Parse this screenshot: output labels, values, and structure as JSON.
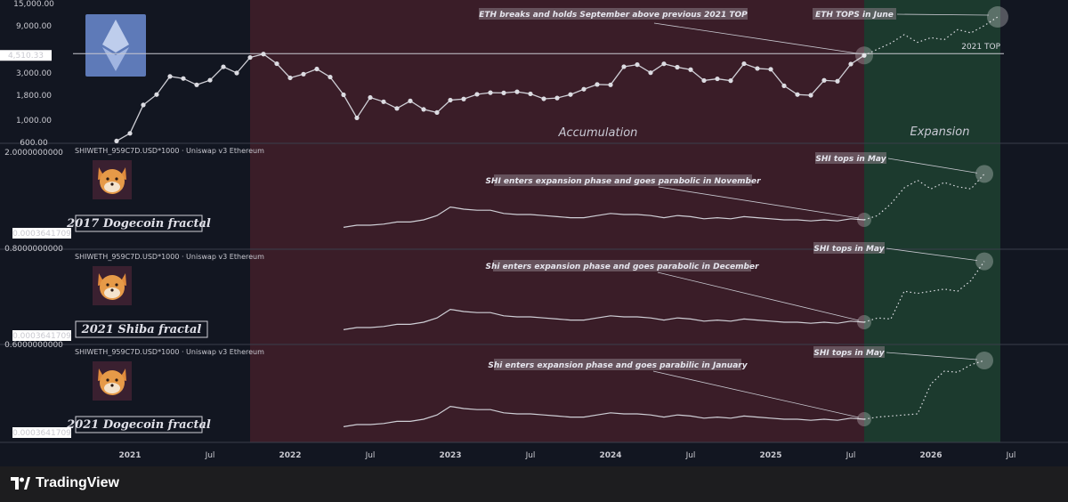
{
  "chart_data": [
    {
      "type": "line",
      "panel": "ETH",
      "scale": "log",
      "y_ticks": [
        "15,000.00",
        "9,000.00",
        "3,000.00",
        "1,800.00",
        "1,000.00",
        "600.00"
      ],
      "price_label": "4,510.33",
      "ylim": [
        600,
        15000
      ],
      "x_ticks": [
        "2021",
        "Jul",
        "2022",
        "Jul",
        "2023",
        "Jul",
        "2024",
        "Jul",
        "2025",
        "Jul",
        "2026",
        "Jul"
      ],
      "x_tick_dates": [
        "2021-01",
        "2021-07",
        "2022-01",
        "2022-07",
        "2023-01",
        "2023-07",
        "2024-01",
        "2024-07",
        "2025-01",
        "2025-07",
        "2026-01",
        "2026-07"
      ],
      "series_actual": {
        "x": [
          "2020-12",
          "2021-01",
          "2021-02",
          "2021-03",
          "2021-04",
          "2021-05",
          "2021-06",
          "2021-07",
          "2021-08",
          "2021-09",
          "2021-10",
          "2021-11",
          "2021-12",
          "2022-01",
          "2022-02",
          "2022-03",
          "2022-04",
          "2022-05",
          "2022-06",
          "2022-07",
          "2022-08",
          "2022-09",
          "2022-10",
          "2022-11",
          "2022-12",
          "2023-01",
          "2023-02",
          "2023-03",
          "2023-04",
          "2023-05",
          "2023-06",
          "2023-07",
          "2023-08",
          "2023-09",
          "2023-10",
          "2023-11",
          "2023-12",
          "2024-01",
          "2024-02",
          "2024-03",
          "2024-04",
          "2024-05",
          "2024-06",
          "2024-07",
          "2024-08",
          "2024-09",
          "2024-10",
          "2024-11",
          "2024-12",
          "2025-01",
          "2025-02",
          "2025-03",
          "2025-04",
          "2025-05",
          "2025-06",
          "2025-07",
          "2025-08"
        ],
        "values": [
          620,
          740,
          1430,
          1820,
          2770,
          2640,
          2280,
          2540,
          3460,
          3000,
          4300,
          4650,
          3720,
          2680,
          2920,
          3290,
          2730,
          1810,
          1060,
          1700,
          1540,
          1320,
          1570,
          1290,
          1200,
          1600,
          1640,
          1830,
          1900,
          1890,
          1940,
          1850,
          1650,
          1680,
          1820,
          2060,
          2300,
          2280,
          3470,
          3640,
          3020,
          3710,
          3430,
          3240,
          2520,
          2620,
          2510,
          3720,
          3330,
          3270,
          2230,
          1820,
          1790,
          2530,
          2480,
          3690,
          4510
        ]
      },
      "series_projection": {
        "x": [
          "2025-08",
          "2025-09",
          "2025-10",
          "2025-11",
          "2025-12",
          "2026-01",
          "2026-02",
          "2026-03",
          "2026-04",
          "2026-05",
          "2026-06"
        ],
        "values": [
          4510,
          5200,
          6000,
          7300,
          6100,
          6800,
          6500,
          8200,
          7600,
          9000,
          11000
        ]
      },
      "reference_line": {
        "value": 4700,
        "label": "2021 TOP"
      },
      "phases": [
        {
          "name": "Accumulation",
          "from": "2021-11",
          "to": "2025-08"
        },
        {
          "name": "Expansion",
          "from": "2025-08",
          "to": "2026-06"
        }
      ],
      "annotations": [
        {
          "text": "ETH breaks and holds September above previous 2021 TOP",
          "target_x": "2025-08",
          "target_value": 4510
        },
        {
          "text": "ETH TOPS in June",
          "target_x": "2026-06",
          "target_value": 11000
        }
      ],
      "colors": {
        "accumulation": "#3a1d28",
        "expansion": "#1c3a2e",
        "line": "#cfcfd6"
      }
    },
    {
      "type": "line",
      "panel": "SHI 2017 Dogecoin fractal",
      "symbol": "SHIWETH_959C7D.USD*1000 · Uniswap v3 Ethereum",
      "top_tick": "2.0000000000",
      "price_label": "0.0003641709",
      "fractal_label": "2017 Dogecoin fractal",
      "annotations": [
        {
          "text": "SHI enters expansion phase and goes parabolic in November"
        },
        {
          "text": "SHI tops in May"
        }
      ]
    },
    {
      "type": "line",
      "panel": "SHI 2021 Shiba fractal",
      "symbol": "SHIWETH_959C7D.USD*1000 · Uniswap v3 Ethereum",
      "top_tick": "0.8000000000",
      "price_label": "0.0003641709",
      "fractal_label": "2021 Shiba fractal",
      "annotations": [
        {
          "text": "Shi enters expansion phase and goes parabolic in December"
        },
        {
          "text": "SHI tops in May"
        }
      ]
    },
    {
      "type": "line",
      "panel": "SHI 2021 Dogecoin fractal",
      "symbol": "SHIWETH_959C7D.USD*1000 · Uniswap v3 Ethereum",
      "top_tick": "0.6000000000",
      "price_label": "0.0003641709",
      "fractal_label": "2021 Dogecoin fractal",
      "annotations": [
        {
          "text": "Shi enters expansion phase and goes parabilic in January"
        },
        {
          "text": "SHI tops in May"
        }
      ]
    }
  ],
  "shi_common": {
    "x": [
      "2022-05",
      "2022-06",
      "2022-07",
      "2022-08",
      "2022-09",
      "2022-10",
      "2022-11",
      "2022-12",
      "2023-01",
      "2023-02",
      "2023-03",
      "2023-04",
      "2023-05",
      "2023-06",
      "2023-07",
      "2023-08",
      "2023-09",
      "2023-10",
      "2023-11",
      "2023-12",
      "2024-01",
      "2024-02",
      "2024-03",
      "2024-04",
      "2024-05",
      "2024-06",
      "2024-07",
      "2024-08",
      "2024-09",
      "2024-10",
      "2024-11",
      "2024-12",
      "2025-01",
      "2025-02",
      "2025-03",
      "2025-04",
      "2025-05",
      "2025-06",
      "2025-07",
      "2025-08"
    ],
    "values": [
      8,
      10,
      10,
      11,
      13,
      13,
      15,
      19,
      27,
      25,
      24,
      24,
      21,
      20,
      20,
      19,
      18,
      17,
      17,
      19,
      21,
      20,
      20,
      19,
      17,
      19,
      18,
      16,
      17,
      16,
      18,
      17,
      16,
      15,
      15,
      14,
      15,
      14,
      16,
      15
    ]
  },
  "shi_projections": [
    [
      [
        "2025-08",
        15
      ],
      [
        "2025-09",
        19
      ],
      [
        "2025-10",
        30
      ],
      [
        "2025-11",
        45
      ],
      [
        "2025-12",
        52
      ],
      [
        "2026-01",
        44
      ],
      [
        "2026-02",
        50
      ],
      [
        "2026-03",
        46
      ],
      [
        "2026-04",
        44
      ],
      [
        "2026-05",
        58
      ]
    ],
    [
      [
        "2025-08",
        15
      ],
      [
        "2025-09",
        19
      ],
      [
        "2025-10",
        18
      ],
      [
        "2025-11",
        44
      ],
      [
        "2025-12",
        42
      ],
      [
        "2026-01",
        44
      ],
      [
        "2026-02",
        46
      ],
      [
        "2026-03",
        44
      ],
      [
        "2026-04",
        54
      ],
      [
        "2026-05",
        72
      ]
    ],
    [
      [
        "2025-08",
        15
      ],
      [
        "2025-09",
        17
      ],
      [
        "2025-10",
        18
      ],
      [
        "2025-11",
        19
      ],
      [
        "2025-12",
        20
      ],
      [
        "2026-01",
        48
      ],
      [
        "2026-02",
        60
      ],
      [
        "2026-03",
        59
      ],
      [
        "2026-04",
        66
      ],
      [
        "2026-05",
        70
      ]
    ]
  ],
  "footer": {
    "brand": "TradingView"
  }
}
